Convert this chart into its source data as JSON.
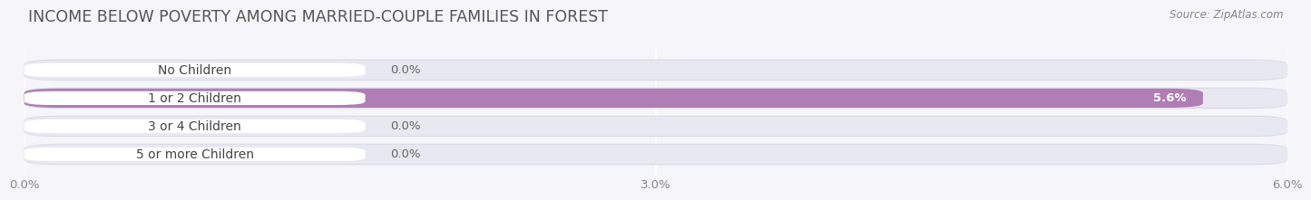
{
  "title": "INCOME BELOW POVERTY AMONG MARRIED-COUPLE FAMILIES IN FOREST",
  "source": "Source: ZipAtlas.com",
  "categories": [
    "No Children",
    "1 or 2 Children",
    "3 or 4 Children",
    "5 or more Children"
  ],
  "values": [
    0.0,
    5.6,
    0.0,
    0.0
  ],
  "bar_colors": [
    "#9eb5d8",
    "#b07db5",
    "#5bbfb5",
    "#a0a8d8"
  ],
  "bar_bg_color": "#e8e8f0",
  "bar_border_color": "#d8d8e8",
  "xlim": [
    0,
    6.0
  ],
  "xticks": [
    0.0,
    3.0,
    6.0
  ],
  "xticklabels": [
    "0.0%",
    "3.0%",
    "6.0%"
  ],
  "background_color": "#f5f5fa",
  "title_fontsize": 12.5,
  "tick_fontsize": 9.5,
  "label_fontsize": 10,
  "value_fontsize": 9.5,
  "source_fontsize": 8.5
}
